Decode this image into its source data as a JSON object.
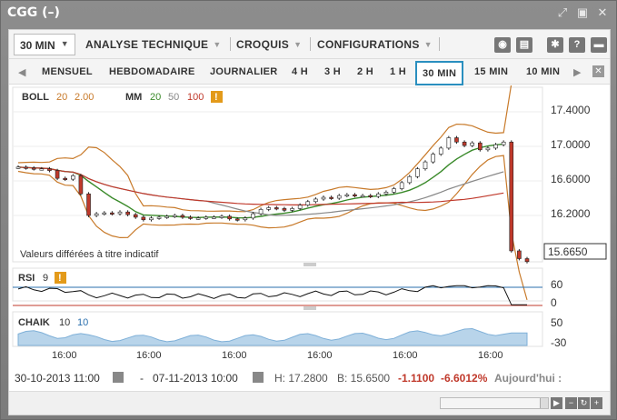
{
  "window": {
    "title": "CGG (–)"
  },
  "toolbar": {
    "interval": "30 MIN",
    "menus": [
      "ANALYSE TECHNIQUE",
      "CROQUIS",
      "CONFIGURATIONS"
    ],
    "icons": [
      "camera-icon",
      "print-icon",
      "gear-icon",
      "help-icon",
      "comment-icon"
    ]
  },
  "periods": [
    "MENSUEL",
    "HEBDOMADAIRE",
    "JOURNALIER",
    "4 H",
    "3 H",
    "2 H",
    "1 H",
    "30 MIN",
    "15 MIN",
    "10 MIN"
  ],
  "active_period": "30 MIN",
  "legend": {
    "boll": {
      "name": "BOLL",
      "p1": "20",
      "p2": "2.00"
    },
    "mm": {
      "name": "MM",
      "p1": "20",
      "p2": "50",
      "p3": "100",
      "warn": "!"
    },
    "rsi": {
      "name": "RSI",
      "p1": "9",
      "warn": "!"
    },
    "chaik": {
      "name": "CHAIK",
      "p1": "10",
      "p2": "10"
    }
  },
  "note": "Valeurs différées à titre indicatif",
  "price_axis": [
    "17.4000",
    "17.0000",
    "16.6000",
    "16.2000"
  ],
  "last_price": "15.6650",
  "rsi_axis": [
    "60",
    "0"
  ],
  "chaik_axis": [
    "50",
    "-30"
  ],
  "time_axis": [
    "16:00",
    "16:00",
    "16:00",
    "16:00",
    "16:00",
    "16:00"
  ],
  "status": {
    "from": "30-10-2013 11:00",
    "sep": "-",
    "to": "07-11-2013 10:00",
    "high": "H: 17.2800",
    "bottom": "B: 15.6500",
    "change": "-1.1100",
    "change_pct": "-6.6012%",
    "today": "Aujourd'hui :"
  },
  "colors": {
    "accent": "#2a8fbf",
    "up": "#c0392b",
    "mm20": "#3a8a2a",
    "mm100": "#c0392b",
    "boll": "#c87a2a",
    "chaik_fill": "#b8d4ea"
  },
  "chart_data": {
    "type": "line",
    "price_close": [
      16.76,
      16.75,
      16.74,
      16.74,
      16.72,
      16.63,
      16.62,
      16.66,
      16.45,
      16.2,
      16.22,
      16.23,
      16.22,
      16.24,
      16.21,
      16.18,
      16.15,
      16.17,
      16.18,
      16.19,
      16.2,
      16.18,
      16.17,
      16.17,
      16.18,
      16.18,
      16.19,
      16.16,
      16.15,
      16.17,
      16.22,
      16.27,
      16.29,
      16.28,
      16.26,
      16.28,
      16.32,
      16.36,
      16.39,
      16.41,
      16.4,
      16.43,
      16.44,
      16.43,
      16.43,
      16.42,
      16.45,
      16.47,
      16.51,
      16.58,
      16.65,
      16.74,
      16.82,
      16.91,
      16.98,
      17.1,
      17.05,
      17.01,
      17.04,
      16.96,
      16.98,
      17.02,
      17.05,
      15.79,
      15.7,
      15.665
    ],
    "last": 15.665,
    "y_axis_ticks": [
      17.4,
      17.0,
      16.6,
      16.2
    ],
    "rsi_lines": [
      60,
      0
    ],
    "chaik_ticks": [
      50,
      -30
    ]
  }
}
